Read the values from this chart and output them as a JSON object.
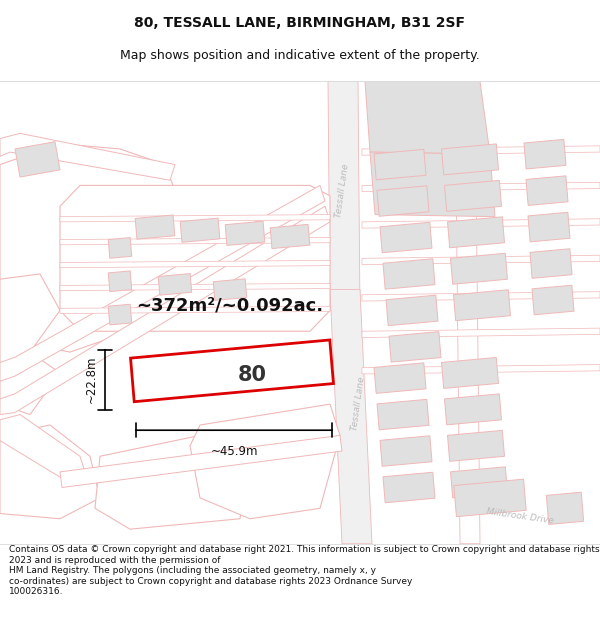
{
  "title": "80, TESSALL LANE, BIRMINGHAM, B31 2SF",
  "subtitle": "Map shows position and indicative extent of the property.",
  "footer": "Contains OS data © Crown copyright and database right 2021. This information is subject to Crown copyright and database rights 2023 and is reproduced with the permission of\nHM Land Registry. The polygons (including the associated geometry, namely x, y\nco-ordinates) are subject to Crown copyright and database rights 2023 Ordnance Survey\n100026316.",
  "bg_color": "#ffffff",
  "map_bg": "#ffffff",
  "plot_outline_color": "#dd0000",
  "road_outline_color": "#f0b8b8",
  "road_fill_color": "#ffffff",
  "bldg_fill_color": "#e0e0e0",
  "bldg_outline_color": "#f0b8b8",
  "road_label_color": "#aaaaaa",
  "dim_color": "#111111",
  "area_text": "~372m²/~0.092ac.",
  "label_80": "80",
  "label_width": "~45.9m",
  "label_height": "~22.8m",
  "label_tessall_top": "Tessall Lane",
  "label_tessall_mid": "Tessall Lane",
  "label_millbrook": "Millbrook Drive",
  "title_fontsize": 10,
  "subtitle_fontsize": 9,
  "footer_fontsize": 6.5
}
